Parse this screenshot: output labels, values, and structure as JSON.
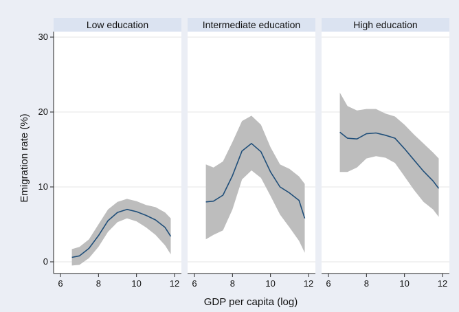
{
  "chart_data": {
    "type": "line",
    "title": "",
    "xlabel": "GDP per capita (log)",
    "ylabel": "Emigration rate (%)",
    "ylim": [
      0,
      30
    ],
    "yticks": [
      0,
      10,
      20,
      30
    ],
    "xlim": [
      6,
      12
    ],
    "xticks": [
      6,
      8,
      10,
      12
    ],
    "grid": true,
    "colors": {
      "frame_background": "#ebeef5",
      "plot_background": "#ffffff",
      "strip": "#dbe3f1",
      "band": "#bdbdbd",
      "line": "#1f4e79",
      "grid": "#e6e6e6"
    },
    "panels": [
      {
        "title": "Low education",
        "x": [
          6.6,
          7.0,
          7.5,
          8.0,
          8.5,
          9.0,
          9.5,
          10.0,
          10.5,
          11.0,
          11.5,
          11.8
        ],
        "y": [
          0.6,
          0.8,
          1.8,
          3.5,
          5.5,
          6.6,
          7.0,
          6.7,
          6.2,
          5.6,
          4.6,
          3.4
        ],
        "lower": [
          -0.5,
          -0.4,
          0.5,
          2.0,
          4.0,
          5.3,
          5.8,
          5.4,
          4.6,
          3.6,
          2.2,
          1.0
        ],
        "upper": [
          1.7,
          2.0,
          3.0,
          5.0,
          7.0,
          8.0,
          8.4,
          8.1,
          7.6,
          7.3,
          6.6,
          5.8
        ]
      },
      {
        "title": "Intermediate education",
        "x": [
          6.6,
          7.0,
          7.5,
          8.0,
          8.5,
          9.0,
          9.5,
          10.0,
          10.5,
          11.0,
          11.5,
          11.8
        ],
        "y": [
          8.0,
          8.1,
          8.9,
          11.5,
          14.8,
          15.8,
          14.7,
          12.0,
          10.0,
          9.2,
          8.2,
          5.8
        ],
        "lower": [
          3.0,
          3.6,
          4.2,
          7.0,
          11.0,
          12.2,
          11.2,
          8.8,
          6.3,
          4.6,
          2.8,
          1.2
        ],
        "upper": [
          13.0,
          12.6,
          13.4,
          16.0,
          18.8,
          19.5,
          18.3,
          15.3,
          13.0,
          12.4,
          11.4,
          10.4
        ]
      },
      {
        "title": "High education",
        "x": [
          6.6,
          7.0,
          7.5,
          8.0,
          8.5,
          9.0,
          9.5,
          10.0,
          10.5,
          11.0,
          11.5,
          11.8
        ],
        "y": [
          17.3,
          16.5,
          16.4,
          17.1,
          17.2,
          16.9,
          16.5,
          15.1,
          13.6,
          12.1,
          10.8,
          9.8
        ],
        "lower": [
          12.0,
          12.0,
          12.6,
          13.8,
          14.1,
          13.9,
          13.2,
          11.4,
          9.6,
          8.0,
          7.0,
          6.0
        ],
        "upper": [
          22.6,
          20.8,
          20.2,
          20.4,
          20.4,
          19.8,
          19.4,
          18.3,
          17.0,
          15.8,
          14.6,
          13.8
        ]
      }
    ]
  }
}
